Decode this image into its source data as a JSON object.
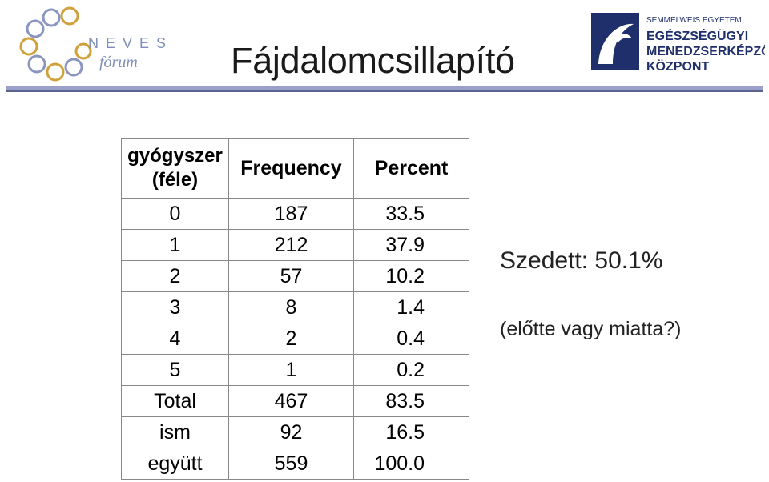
{
  "logo_left": {
    "text_top": "NEVES",
    "text_bottom": "fórum"
  },
  "logo_right": {
    "line1": "SEMMELWEIS EGYETEM",
    "line2": "EGÉSZSÉGÜGYI",
    "line3": "MENEDZSERKÉPZŐ",
    "line4": "KÖZPONT"
  },
  "title": "Fájdalomcsillapító",
  "table": {
    "headers": [
      "gyógyszer (féle)",
      "Frequency",
      "Percent"
    ],
    "header_line1": "gyógyszer",
    "header_line2": "(féle)",
    "rows": [
      [
        "0",
        "187",
        "33.5"
      ],
      [
        "1",
        "212",
        "37.9"
      ],
      [
        "2",
        "57",
        "10.2"
      ],
      [
        "3",
        "8",
        "1.4"
      ],
      [
        "4",
        "2",
        "0.4"
      ],
      [
        "5",
        "1",
        "0.2"
      ],
      [
        "Total",
        "467",
        "83.5"
      ],
      [
        "ism",
        "92",
        "16.5"
      ],
      [
        "együtt",
        "559",
        "100.0"
      ]
    ]
  },
  "notes": {
    "taken": "Szedett: 50.1%",
    "question": "(előtte vagy miatta?)"
  },
  "colors": {
    "rule": "#9aa0c8",
    "logo_navy": "#1f2f6b",
    "logo_gold": "#d0a13a"
  }
}
